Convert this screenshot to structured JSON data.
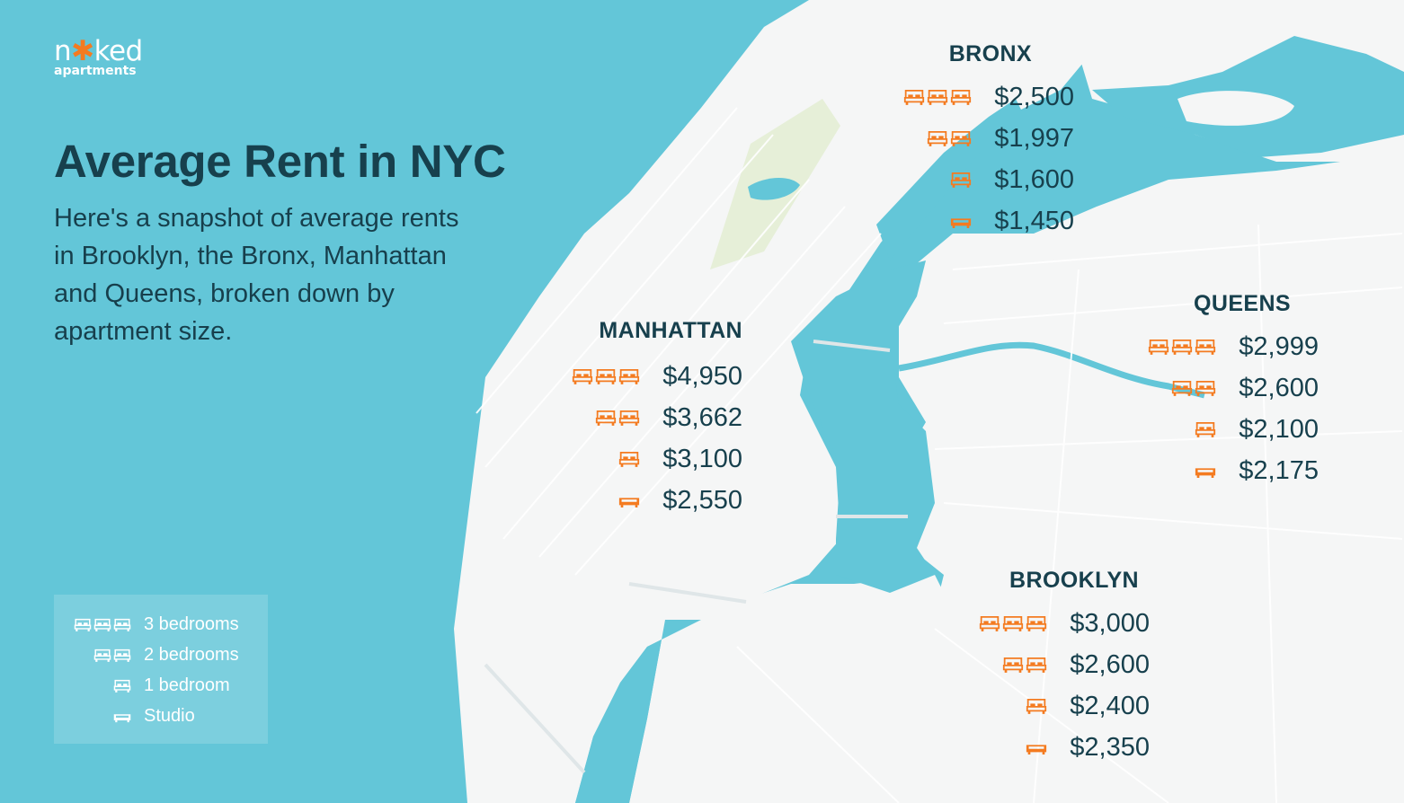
{
  "brand": {
    "name_before": "n",
    "name_after": "ked",
    "sub": "apartments"
  },
  "title": "Average Rent in NYC",
  "description": "Here's a snapshot of average rents in Brooklyn, the Bronx, Manhattan and Queens, broken down by apartment size.",
  "colors": {
    "water": "#63c6d8",
    "land": "#f5f6f6",
    "park": "#e6efd8",
    "text": "#17404d",
    "accent": "#f47b20",
    "legend_icon": "#ffffff"
  },
  "legend": [
    {
      "icon": "bed-icon",
      "icon_count": 3,
      "label": "3 bedrooms"
    },
    {
      "icon": "bed-icon",
      "icon_count": 2,
      "label": "2 bedrooms"
    },
    {
      "icon": "bed-icon",
      "icon_count": 1,
      "label": "1 bedroom"
    },
    {
      "icon": "studio-icon",
      "icon_count": 1,
      "label": "Studio"
    }
  ],
  "boroughs": [
    {
      "id": "bronx",
      "name": "BRONX",
      "rents": [
        {
          "size": "3 bedrooms",
          "icon": "bed-icon",
          "icon_count": 3,
          "price": "$2,500"
        },
        {
          "size": "2 bedrooms",
          "icon": "bed-icon",
          "icon_count": 2,
          "price": "$1,997"
        },
        {
          "size": "1 bedroom",
          "icon": "bed-icon",
          "icon_count": 1,
          "price": "$1,600"
        },
        {
          "size": "Studio",
          "icon": "studio-icon",
          "icon_count": 1,
          "price": "$1,450"
        }
      ]
    },
    {
      "id": "manhattan",
      "name": "MANHATTAN",
      "rents": [
        {
          "size": "3 bedrooms",
          "icon": "bed-icon",
          "icon_count": 3,
          "price": "$4,950"
        },
        {
          "size": "2 bedrooms",
          "icon": "bed-icon",
          "icon_count": 2,
          "price": "$3,662"
        },
        {
          "size": "1 bedroom",
          "icon": "bed-icon",
          "icon_count": 1,
          "price": "$3,100"
        },
        {
          "size": "Studio",
          "icon": "studio-icon",
          "icon_count": 1,
          "price": "$2,550"
        }
      ]
    },
    {
      "id": "queens",
      "name": "QUEENS",
      "rents": [
        {
          "size": "3 bedrooms",
          "icon": "bed-icon",
          "icon_count": 3,
          "price": "$2,999"
        },
        {
          "size": "2 bedrooms",
          "icon": "bed-icon",
          "icon_count": 2,
          "price": "$2,600"
        },
        {
          "size": "1 bedroom",
          "icon": "bed-icon",
          "icon_count": 1,
          "price": "$2,100"
        },
        {
          "size": "Studio",
          "icon": "studio-icon",
          "icon_count": 1,
          "price": "$2,175"
        }
      ]
    },
    {
      "id": "brooklyn",
      "name": "BROOKLYN",
      "rents": [
        {
          "size": "3 bedrooms",
          "icon": "bed-icon",
          "icon_count": 3,
          "price": "$3,000"
        },
        {
          "size": "2 bedrooms",
          "icon": "bed-icon",
          "icon_count": 2,
          "price": "$2,600"
        },
        {
          "size": "1 bedroom",
          "icon": "bed-icon",
          "icon_count": 1,
          "price": "$2,400"
        },
        {
          "size": "Studio",
          "icon": "studio-icon",
          "icon_count": 1,
          "price": "$2,350"
        }
      ]
    }
  ]
}
